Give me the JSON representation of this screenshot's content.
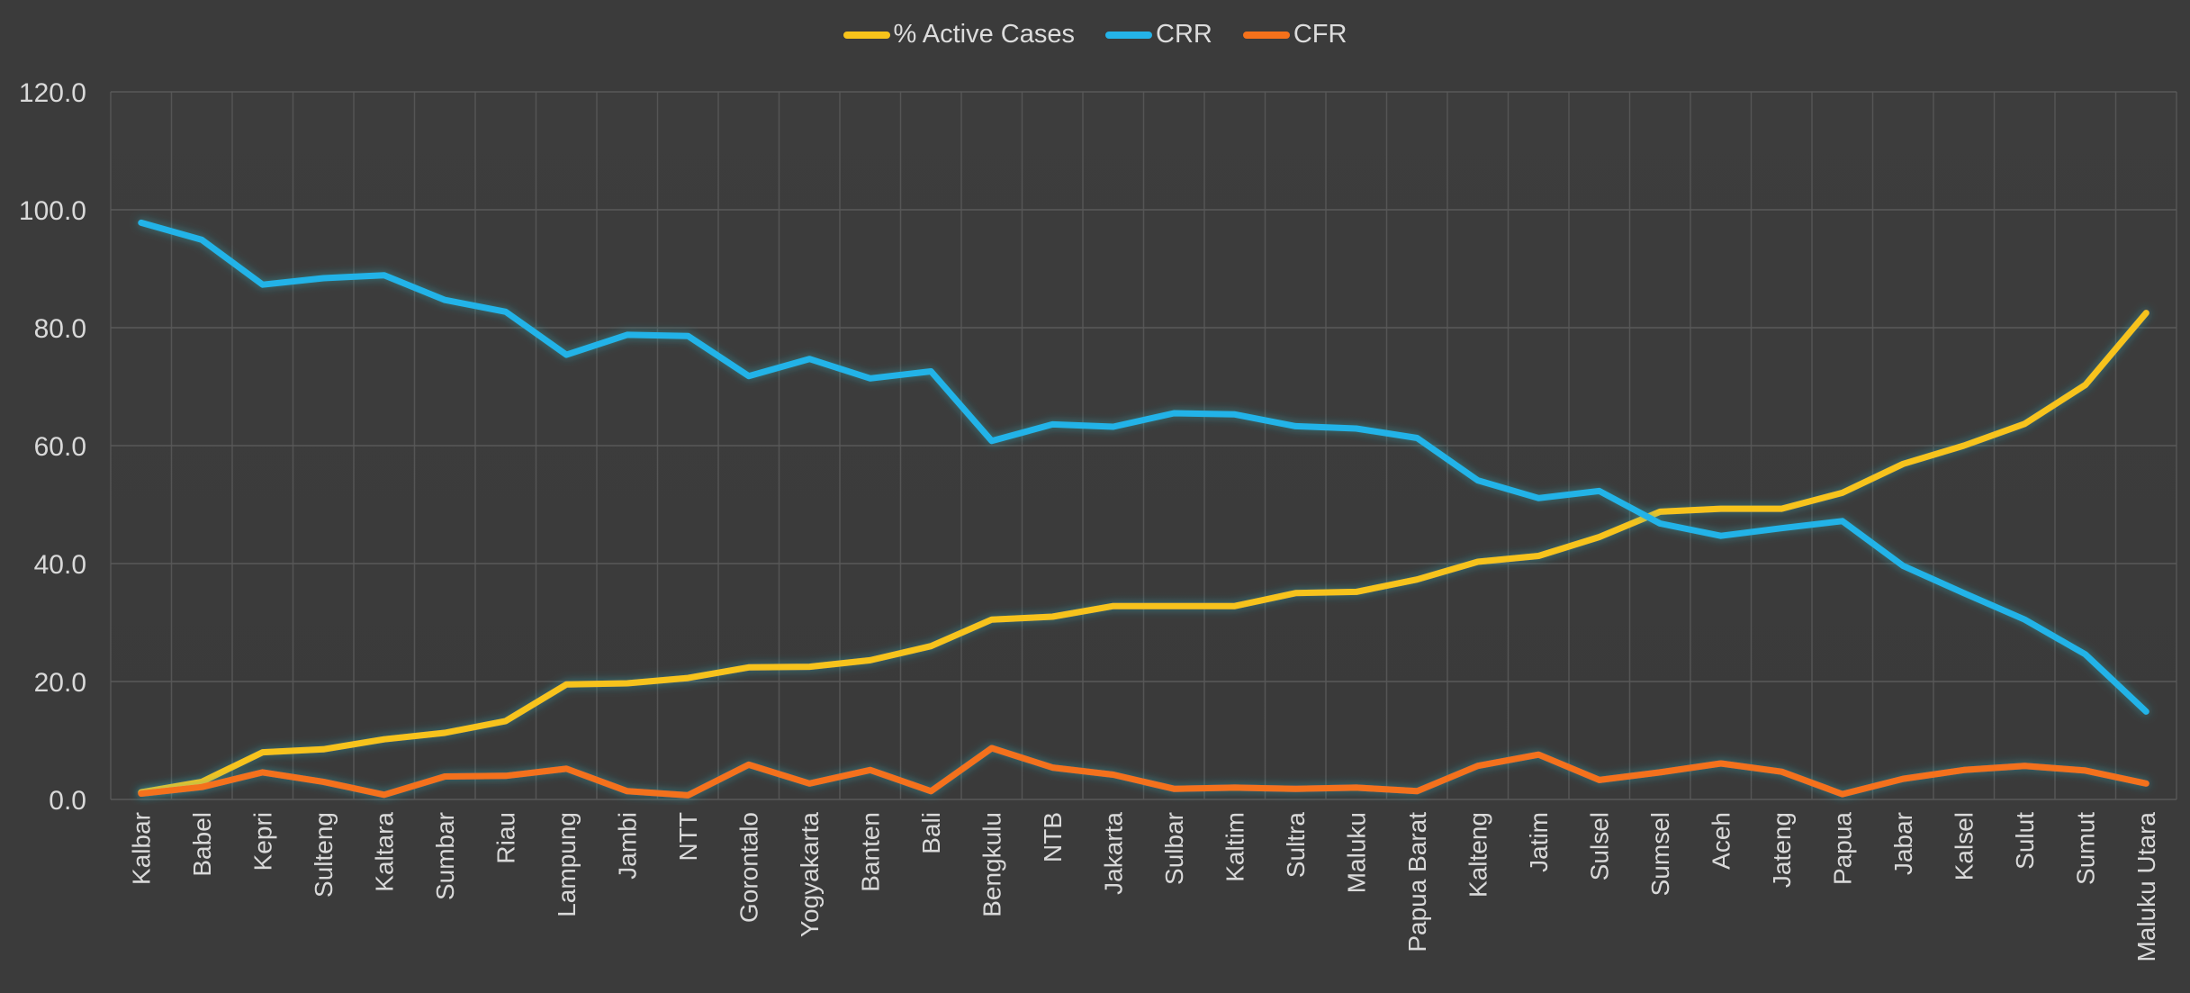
{
  "chart_data": {
    "type": "line",
    "title": "",
    "xlabel": "",
    "ylabel": "",
    "ylim": [
      0,
      120
    ],
    "yticks": [
      "0.0",
      "20.0",
      "40.0",
      "60.0",
      "80.0",
      "100.0",
      "120.0"
    ],
    "grid": true,
    "legend_position": "top",
    "categories": [
      "Kalbar",
      "Babel",
      "Kepri",
      "Sulteng",
      "Kaltara",
      "Sumbar",
      "Riau",
      "Lampung",
      "Jambi",
      "NTT",
      "Gorontalo",
      "Yogyakarta",
      "Banten",
      "Bali",
      "Bengkulu",
      "NTB",
      "Jakarta",
      "Sulbar",
      "Kaltim",
      "Sultra",
      "Maluku",
      "Papua Barat",
      "Kalteng",
      "Jatim",
      "Sulsel",
      "Sumsel",
      "Aceh",
      "Jateng",
      "Papua",
      "Jabar",
      "Kalsel",
      "Sulut",
      "Sumut",
      "Maluku Utara"
    ],
    "series": [
      {
        "name": "% Active Cases",
        "color": "#f7c31b",
        "values": [
          1.2,
          3.0,
          8.0,
          8.5,
          10.2,
          11.3,
          13.3,
          19.5,
          19.7,
          20.6,
          22.4,
          22.5,
          23.6,
          26.0,
          30.5,
          31.0,
          32.8,
          32.8,
          32.8,
          35.0,
          35.2,
          37.3,
          40.3,
          41.3,
          44.5,
          48.8,
          49.3,
          49.3,
          52.0,
          56.9,
          60.0,
          63.7,
          70.3,
          82.5
        ]
      },
      {
        "name": "CRR",
        "color": "#24b3e8",
        "values": [
          97.8,
          94.9,
          87.3,
          88.4,
          88.9,
          84.7,
          82.7,
          75.4,
          78.8,
          78.6,
          71.8,
          74.7,
          71.4,
          72.6,
          60.8,
          63.6,
          63.2,
          65.5,
          65.3,
          63.3,
          62.9,
          61.3,
          54.1,
          51.1,
          52.3,
          46.8,
          44.7,
          46.0,
          47.2,
          39.6,
          35.0,
          30.5,
          24.6,
          14.9
        ]
      },
      {
        "name": "CFR",
        "color": "#f4711b",
        "values": [
          1.0,
          2.1,
          4.6,
          3.0,
          0.8,
          3.9,
          4.0,
          5.2,
          1.4,
          0.7,
          5.9,
          2.7,
          5.0,
          1.4,
          8.7,
          5.4,
          4.2,
          1.8,
          2.0,
          1.8,
          2.0,
          1.4,
          5.7,
          7.6,
          3.3,
          4.6,
          6.1,
          4.7,
          0.9,
          3.5,
          5.0,
          5.7,
          4.9,
          2.7
        ]
      }
    ]
  }
}
